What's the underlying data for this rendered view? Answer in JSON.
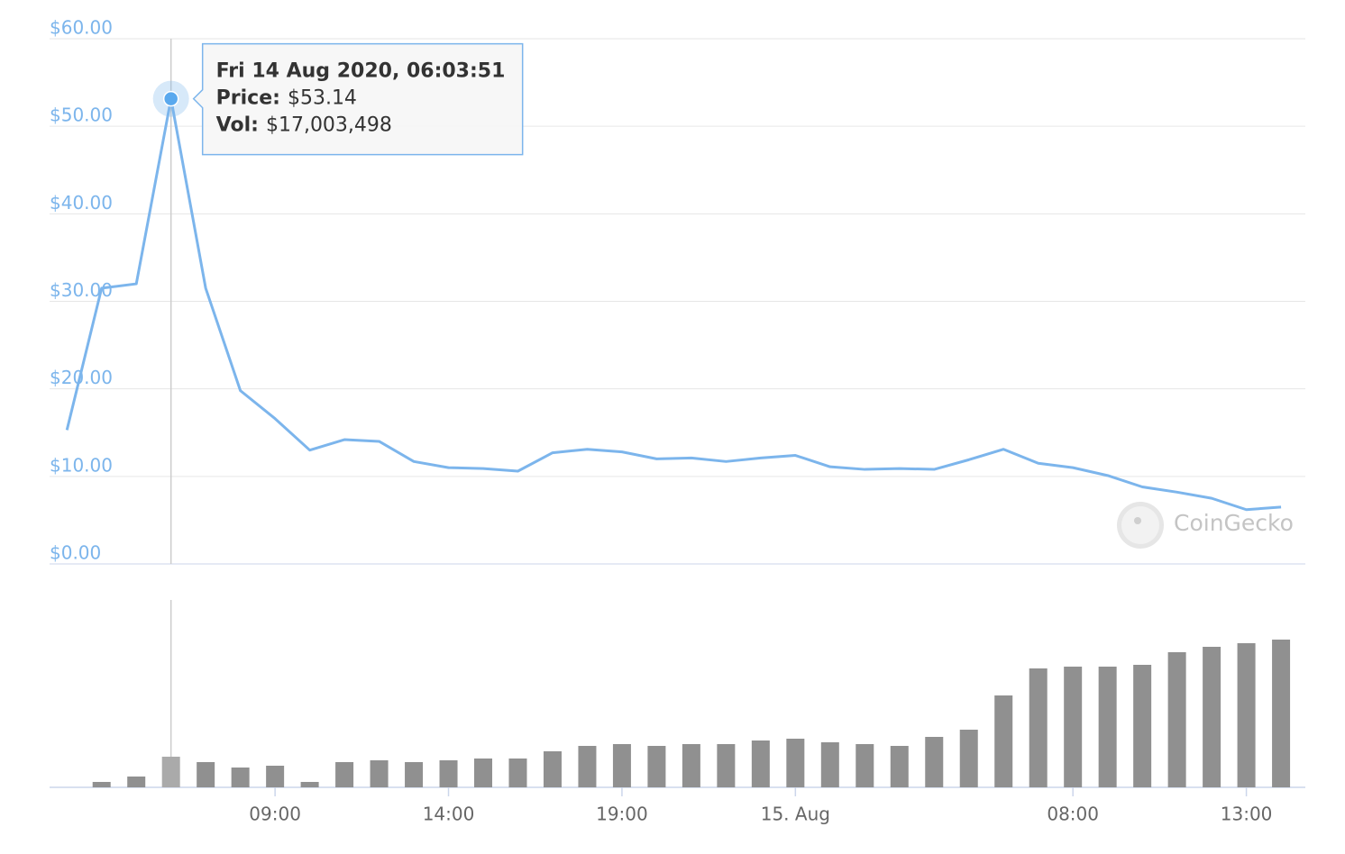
{
  "chart_data": {
    "type": "line",
    "x": [
      3,
      4,
      5,
      6,
      7,
      8,
      9,
      10,
      11,
      12,
      13,
      14,
      15,
      16,
      17,
      18,
      19,
      20,
      21,
      22,
      23,
      24,
      25,
      26,
      27,
      28,
      29,
      30,
      31,
      32,
      33,
      34,
      35,
      36,
      37,
      38
    ],
    "xlim": [
      2.5,
      38.7
    ],
    "xticks": [
      {
        "value": 9,
        "label": "09:00"
      },
      {
        "value": 14,
        "label": "14:00"
      },
      {
        "value": 19,
        "label": "19:00"
      },
      {
        "value": 24,
        "label": "15. Aug"
      },
      {
        "value": 32,
        "label": "08:00"
      },
      {
        "value": 37,
        "label": "13:00"
      }
    ],
    "ylim": [
      0,
      60
    ],
    "yticks": [
      {
        "value": 0,
        "label": "$0.00"
      },
      {
        "value": 10,
        "label": "$10.00"
      },
      {
        "value": 20,
        "label": "$20.00"
      },
      {
        "value": 30,
        "label": "$30.00"
      },
      {
        "value": 40,
        "label": "$40.00"
      },
      {
        "value": 50,
        "label": "$50.00"
      },
      {
        "value": 60,
        "label": "$60.00"
      }
    ],
    "y2lim": [
      0,
      104000000
    ],
    "grid": true,
    "series": [
      {
        "type": "line",
        "color": "#7cb5ec",
        "values": [
          15.3,
          31.5,
          32.0,
          53.14,
          31.5,
          19.8,
          16.6,
          13.0,
          14.2,
          14.0,
          11.7,
          11.0,
          10.9,
          10.6,
          12.7,
          13.1,
          12.8,
          12.0,
          12.1,
          11.7,
          12.1,
          12.4,
          11.1,
          10.8,
          10.9,
          10.8,
          11.9,
          13.1,
          11.5,
          11.0,
          10.1,
          8.8,
          8.2,
          7.5,
          6.2,
          6.5
        ]
      },
      {
        "type": "bar",
        "axis": "y2",
        "color": "#909090",
        "highlight_color": "#aaaaaa",
        "values": [
          null,
          3000000,
          6000000,
          17003498,
          14000000,
          11000000,
          12000000,
          3000000,
          14000000,
          15000000,
          14000000,
          15000000,
          16000000,
          16000000,
          20000000,
          23000000,
          24000000,
          23000000,
          24000000,
          24000000,
          26000000,
          27000000,
          25000000,
          24000000,
          23000000,
          28000000,
          32000000,
          51000000,
          66000000,
          67000000,
          67000000,
          68000000,
          75000000,
          78000000,
          80000000,
          82000000
        ]
      }
    ],
    "tooltip": {
      "title": "Fri 14 Aug 2020, 06:03:51",
      "price_label": "Price:",
      "price": "$53.14",
      "vol_label": "Vol:",
      "vol": "$17,003,498"
    },
    "watermark": "CoinGecko"
  }
}
